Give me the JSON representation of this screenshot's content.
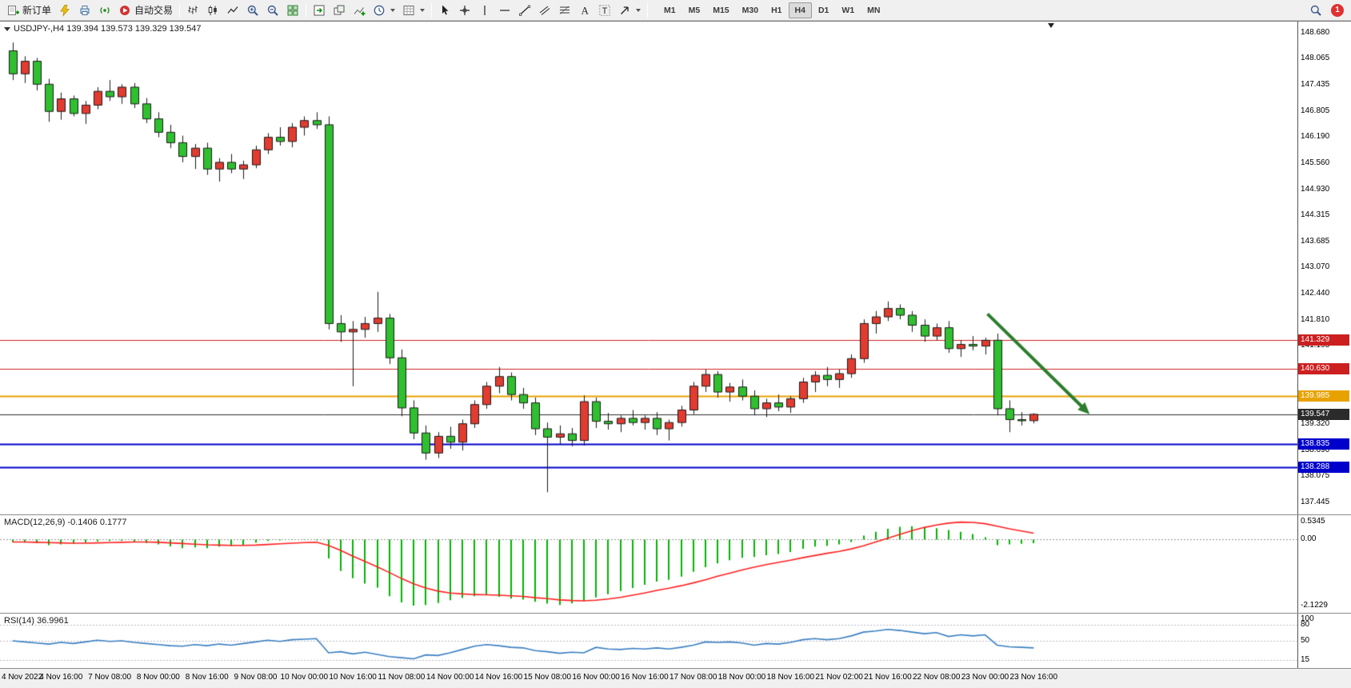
{
  "toolbar": {
    "new_order_label": "新订单",
    "auto_trading_label": "自动交易",
    "notification_count": "1",
    "timeframes": [
      {
        "label": "M1",
        "active": false
      },
      {
        "label": "M5",
        "active": false
      },
      {
        "label": "M15",
        "active": false
      },
      {
        "label": "M30",
        "active": false
      },
      {
        "label": "H1",
        "active": false
      },
      {
        "label": "H4",
        "active": true
      },
      {
        "label": "D1",
        "active": false
      },
      {
        "label": "W1",
        "active": false
      },
      {
        "label": "MN",
        "active": false
      }
    ]
  },
  "chart": {
    "title": "USDJPY-,H4 139.394 139.573 139.329 139.547",
    "symbol": "USDJPY-",
    "period": "H4"
  },
  "colors": {
    "bull_up": "#e23b30",
    "bear_down": "#2fbf2f",
    "wick": "#1a1a1a",
    "macd_histogram": "#00b400",
    "macd_signal": "#ff2020",
    "rsi_line": "#3a7fc1",
    "level_red": "#cc2020",
    "level_orange": "#e8a200",
    "level_blue": "#0000cc",
    "current_price": "#2b2b2b",
    "arrow": "#2d7d2d"
  },
  "chart_data": [
    {
      "type": "candlestick",
      "symbol": "USDJPY-",
      "period": "H4",
      "quote": {
        "open": 139.394,
        "high": 139.573,
        "low": 139.329,
        "close": 139.547
      },
      "ylim": [
        137.15,
        148.95
      ],
      "x_label_every": 4,
      "x_labels": [
        "4 Nov 2022",
        "4 Nov 16:00",
        "7 Nov 08:00",
        "8 Nov 00:00",
        "8 Nov 16:00",
        "9 Nov 08:00",
        "10 Nov 00:00",
        "10 Nov 16:00",
        "11 Nov 08:00",
        "14 Nov 00:00",
        "14 Nov 16:00",
        "15 Nov 08:00",
        "16 Nov 00:00",
        "16 Nov 16:00",
        "17 Nov 08:00",
        "18 Nov 00:00",
        "18 Nov 16:00",
        "21 Nov 02:00",
        "21 Nov 16:00",
        "22 Nov 08:00",
        "23 Nov 00:00",
        "23 Nov 16:00"
      ],
      "axis_ticks": [
        {
          "value": 148.68,
          "label": "148.680"
        },
        {
          "value": 148.065,
          "label": "148.065"
        },
        {
          "value": 147.435,
          "label": "147.435"
        },
        {
          "value": 146.805,
          "label": "146.805"
        },
        {
          "value": 146.19,
          "label": "146.190"
        },
        {
          "value": 145.56,
          "label": "145.560"
        },
        {
          "value": 144.93,
          "label": "144.930"
        },
        {
          "value": 144.315,
          "label": "144.315"
        },
        {
          "value": 143.685,
          "label": "143.685"
        },
        {
          "value": 143.07,
          "label": "143.070"
        },
        {
          "value": 142.44,
          "label": "142.440"
        },
        {
          "value": 141.81,
          "label": "141.810"
        },
        {
          "value": 141.195,
          "label": "141.195"
        },
        {
          "value": 140.565,
          "label": "140.565"
        },
        {
          "value": 139.95,
          "label": "139.950"
        },
        {
          "value": 139.32,
          "label": "139.320"
        },
        {
          "value": 138.69,
          "label": "138.690"
        },
        {
          "value": 138.075,
          "label": "138.075"
        },
        {
          "value": 137.445,
          "label": "137.445"
        }
      ],
      "levels": [
        {
          "value": 141.329,
          "badge": "141.329",
          "color": "#cc2020",
          "line_width": 1,
          "role": "resistance-line-badge"
        },
        {
          "value": 140.63,
          "badge": "140.630",
          "color": "#cc2020",
          "line_width": 1,
          "role": "resistance-line-badge"
        },
        {
          "value": 139.985,
          "badge": "139.985",
          "color": "#e8a200",
          "line_width": 2,
          "role": "pivot-line-badge"
        },
        {
          "value": 139.547,
          "badge": "139.547",
          "color": "#2b2b2b",
          "line_width": 1,
          "role": "current-price-badge"
        },
        {
          "value": 138.835,
          "badge": "138.835",
          "color": "#0000cc",
          "line_width": 2,
          "role": "support-line-badge"
        },
        {
          "value": 138.288,
          "badge": "138.288",
          "color": "#0000cc",
          "line_width": 2,
          "role": "support-line-badge"
        }
      ],
      "annotation_arrow": {
        "from": {
          "index": 80.2,
          "price": 141.95
        },
        "to": {
          "index": 88.6,
          "price": 139.55
        },
        "color": "#2d7d2d"
      },
      "candles": [
        [
          148.25,
          148.45,
          147.55,
          147.7
        ],
        [
          147.7,
          148.12,
          147.48,
          148.0
        ],
        [
          148.0,
          148.08,
          147.3,
          147.45
        ],
        [
          147.45,
          147.58,
          146.55,
          146.8
        ],
        [
          146.8,
          147.25,
          146.6,
          147.1
        ],
        [
          147.1,
          147.18,
          146.68,
          146.75
        ],
        [
          146.75,
          147.05,
          146.5,
          146.95
        ],
        [
          146.95,
          147.38,
          146.85,
          147.28
        ],
        [
          147.28,
          147.55,
          147.05,
          147.15
        ],
        [
          147.15,
          147.45,
          146.98,
          147.38
        ],
        [
          147.38,
          147.48,
          146.88,
          146.98
        ],
        [
          146.98,
          147.12,
          146.52,
          146.62
        ],
        [
          146.62,
          146.78,
          146.18,
          146.3
        ],
        [
          146.3,
          146.48,
          145.92,
          146.05
        ],
        [
          146.05,
          146.22,
          145.58,
          145.72
        ],
        [
          145.72,
          146.02,
          145.42,
          145.92
        ],
        [
          145.92,
          146.05,
          145.28,
          145.42
        ],
        [
          145.42,
          145.68,
          145.12,
          145.58
        ],
        [
          145.58,
          145.78,
          145.32,
          145.42
        ],
        [
          145.42,
          145.62,
          145.18,
          145.52
        ],
        [
          145.52,
          145.98,
          145.44,
          145.88
        ],
        [
          145.88,
          146.28,
          145.78,
          146.18
        ],
        [
          146.18,
          146.42,
          145.98,
          146.08
        ],
        [
          146.08,
          146.52,
          145.94,
          146.42
        ],
        [
          146.42,
          146.68,
          146.22,
          146.58
        ],
        [
          146.58,
          146.78,
          146.38,
          146.48
        ],
        [
          146.48,
          146.68,
          141.58,
          141.72
        ],
        [
          141.72,
          141.92,
          141.28,
          141.52
        ],
        [
          141.52,
          141.78,
          140.22,
          141.58
        ],
        [
          141.58,
          141.88,
          141.38,
          141.72
        ],
        [
          141.72,
          142.48,
          141.52,
          141.85
        ],
        [
          141.85,
          141.95,
          140.75,
          140.9
        ],
        [
          140.9,
          141.1,
          139.5,
          139.7
        ],
        [
          139.7,
          139.88,
          138.95,
          139.1
        ],
        [
          139.1,
          139.28,
          138.46,
          138.62
        ],
        [
          138.62,
          139.12,
          138.5,
          139.02
        ],
        [
          139.02,
          139.25,
          138.72,
          138.88
        ],
        [
          138.88,
          139.42,
          138.68,
          139.32
        ],
        [
          139.32,
          139.88,
          139.22,
          139.78
        ],
        [
          139.78,
          140.32,
          139.68,
          140.22
        ],
        [
          140.22,
          140.68,
          140.05,
          140.45
        ],
        [
          140.45,
          140.55,
          139.88,
          140.02
        ],
        [
          140.02,
          140.18,
          139.68,
          139.82
        ],
        [
          139.82,
          139.95,
          139.05,
          139.2
        ],
        [
          139.2,
          139.35,
          137.68,
          139.0
        ],
        [
          139.0,
          139.28,
          138.82,
          139.08
        ],
        [
          139.08,
          139.22,
          138.78,
          138.92
        ],
        [
          138.92,
          140.0,
          138.8,
          139.85
        ],
        [
          139.85,
          139.95,
          139.22,
          139.38
        ],
        [
          139.38,
          139.58,
          139.18,
          139.32
        ],
        [
          139.32,
          139.52,
          139.12,
          139.45
        ],
        [
          139.45,
          139.65,
          139.28,
          139.35
        ],
        [
          139.35,
          139.52,
          139.18,
          139.45
        ],
        [
          139.45,
          139.6,
          139.05,
          139.2
        ],
        [
          139.2,
          139.42,
          138.92,
          139.35
        ],
        [
          139.35,
          139.75,
          139.25,
          139.65
        ],
        [
          139.65,
          140.32,
          139.55,
          140.22
        ],
        [
          140.22,
          140.62,
          140.08,
          140.5
        ],
        [
          140.5,
          140.58,
          139.95,
          140.08
        ],
        [
          140.08,
          140.3,
          139.85,
          140.2
        ],
        [
          140.2,
          140.38,
          139.88,
          139.98
        ],
        [
          139.98,
          140.12,
          139.52,
          139.68
        ],
        [
          139.68,
          139.92,
          139.48,
          139.82
        ],
        [
          139.82,
          140.02,
          139.62,
          139.72
        ],
        [
          139.72,
          139.98,
          139.58,
          139.92
        ],
        [
          139.92,
          140.42,
          139.82,
          140.32
        ],
        [
          140.32,
          140.58,
          140.08,
          140.48
        ],
        [
          140.48,
          140.68,
          140.22,
          140.38
        ],
        [
          140.38,
          140.62,
          140.18,
          140.52
        ],
        [
          140.52,
          140.98,
          140.42,
          140.88
        ],
        [
          140.88,
          141.82,
          140.78,
          141.72
        ],
        [
          141.72,
          142.02,
          141.48,
          141.88
        ],
        [
          141.88,
          142.25,
          141.78,
          142.08
        ],
        [
          142.08,
          142.18,
          141.82,
          141.92
        ],
        [
          141.92,
          142.02,
          141.52,
          141.68
        ],
        [
          141.68,
          141.82,
          141.28,
          141.42
        ],
        [
          141.42,
          141.72,
          141.32,
          141.62
        ],
        [
          141.62,
          141.78,
          141.02,
          141.12
        ],
        [
          141.12,
          141.32,
          140.92,
          141.22
        ],
        [
          141.22,
          141.42,
          141.08,
          141.18
        ],
        [
          141.18,
          141.38,
          140.98,
          141.32
        ],
        [
          141.32,
          141.48,
          139.52,
          139.68
        ],
        [
          139.68,
          139.88,
          139.12,
          139.42
        ],
        [
          139.42,
          139.6,
          139.28,
          139.4
        ],
        [
          139.394,
          139.573,
          139.329,
          139.547
        ]
      ]
    },
    {
      "type": "macd_indicator",
      "label": "MACD(12,26,9) -0.1406 0.1777",
      "macd_value": -0.1406,
      "signal_value": 0.1777,
      "ylim": [
        -2.35,
        0.75
      ],
      "axis_ticks": [
        {
          "value": 0.5345,
          "label": "0.5345"
        },
        {
          "value": 0,
          "label": "0.00"
        },
        {
          "value": -2.1229,
          "label": "-2.1229"
        }
      ],
      "histogram": [
        -0.1,
        -0.12,
        -0.14,
        -0.2,
        -0.18,
        -0.16,
        -0.12,
        -0.08,
        -0.07,
        -0.06,
        -0.09,
        -0.13,
        -0.18,
        -0.24,
        -0.3,
        -0.27,
        -0.3,
        -0.25,
        -0.23,
        -0.19,
        -0.12,
        -0.07,
        -0.05,
        -0.04,
        -0.04,
        -0.05,
        -0.62,
        -1.02,
        -1.25,
        -1.42,
        -1.55,
        -1.82,
        -2.02,
        -2.12,
        -2.1,
        -2.04,
        -1.95,
        -1.88,
        -1.82,
        -1.78,
        -1.84,
        -1.9,
        -1.93,
        -2.0,
        -2.06,
        -2.1,
        -2.05,
        -1.98,
        -1.86,
        -1.76,
        -1.66,
        -1.56,
        -1.46,
        -1.36,
        -1.3,
        -1.2,
        -1.05,
        -0.9,
        -0.78,
        -0.68,
        -0.6,
        -0.58,
        -0.52,
        -0.48,
        -0.42,
        -0.32,
        -0.25,
        -0.22,
        -0.18,
        -0.1,
        0.1,
        0.22,
        0.32,
        0.38,
        0.4,
        0.38,
        0.34,
        0.28,
        0.22,
        0.15,
        0.05,
        -0.2,
        -0.18,
        -0.16,
        -0.1406
      ],
      "signal": [
        -0.1,
        -0.1,
        -0.11,
        -0.12,
        -0.13,
        -0.14,
        -0.14,
        -0.13,
        -0.12,
        -0.11,
        -0.1,
        -0.1,
        -0.11,
        -0.13,
        -0.15,
        -0.17,
        -0.19,
        -0.2,
        -0.21,
        -0.21,
        -0.2,
        -0.18,
        -0.16,
        -0.14,
        -0.12,
        -0.11,
        -0.21,
        -0.37,
        -0.55,
        -0.72,
        -0.89,
        -1.07,
        -1.26,
        -1.43,
        -1.56,
        -1.66,
        -1.72,
        -1.75,
        -1.77,
        -1.78,
        -1.79,
        -1.81,
        -1.83,
        -1.87,
        -1.9,
        -1.94,
        -1.96,
        -1.97,
        -1.95,
        -1.91,
        -1.86,
        -1.79,
        -1.72,
        -1.64,
        -1.57,
        -1.49,
        -1.4,
        -1.3,
        -1.19,
        -1.09,
        -0.99,
        -0.9,
        -0.82,
        -0.75,
        -0.68,
        -0.6,
        -0.53,
        -0.46,
        -0.4,
        -0.32,
        -0.22,
        -0.1,
        0.02,
        0.14,
        0.26,
        0.36,
        0.44,
        0.5,
        0.53,
        0.52,
        0.48,
        0.4,
        0.32,
        0.25,
        0.1777
      ]
    },
    {
      "type": "rsi_indicator",
      "label": "RSI(14) 36.9961",
      "value": 36.9961,
      "ylim": [
        0,
        100
      ],
      "levels": [
        80,
        50,
        15
      ],
      "axis_ticks": [
        {
          "value": 100,
          "label": "100"
        },
        {
          "value": 80,
          "label": "80"
        },
        {
          "value": 50,
          "label": "50"
        },
        {
          "value": 15,
          "label": "15"
        }
      ],
      "values": [
        50,
        48,
        46,
        44,
        47,
        45,
        48,
        51,
        49,
        50,
        47,
        45,
        43,
        41,
        40,
        43,
        41,
        44,
        42,
        45,
        48,
        51,
        49,
        52,
        53,
        54,
        28,
        30,
        26,
        29,
        25,
        21,
        19,
        17,
        24,
        23,
        28,
        34,
        40,
        43,
        41,
        38,
        37,
        32,
        30,
        27,
        29,
        28,
        38,
        35,
        34,
        36,
        35,
        37,
        35,
        38,
        42,
        48,
        47,
        48,
        46,
        42,
        45,
        44,
        47,
        52,
        54,
        52,
        54,
        59,
        66,
        68,
        71,
        69,
        66,
        63,
        65,
        58,
        61,
        59,
        61,
        42,
        39,
        38,
        36.9961
      ]
    }
  ]
}
